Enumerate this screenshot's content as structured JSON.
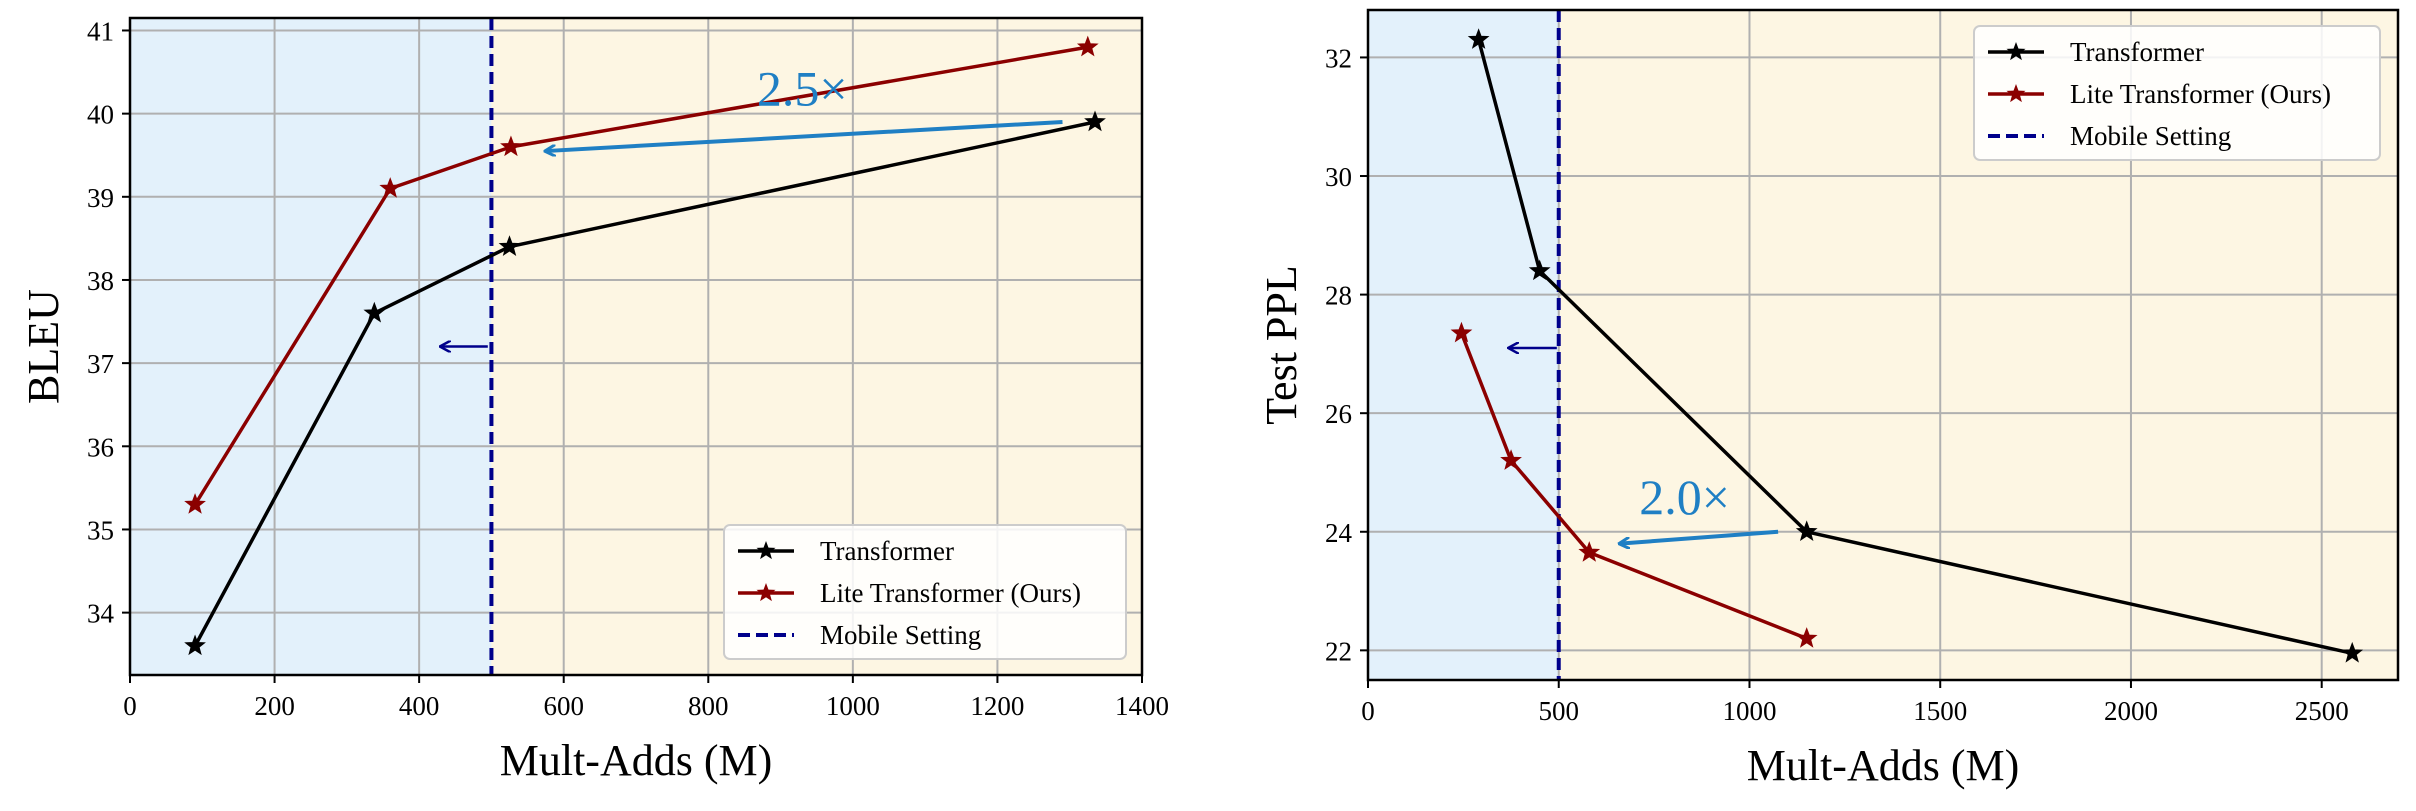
{
  "chart_data": [
    {
      "type": "line",
      "title": "",
      "xlabel": "Mult-Adds (M)",
      "ylabel": "BLEU",
      "xlim": [
        0,
        1400
      ],
      "ylim": [
        33.25,
        41.15
      ],
      "xticks": [
        0,
        200,
        400,
        600,
        800,
        1000,
        1200,
        1400
      ],
      "xtick_labels": [
        "0",
        "200",
        "400",
        "600",
        "800",
        "1000",
        "1200",
        "1400"
      ],
      "yticks": [
        34,
        35,
        36,
        37,
        38,
        39,
        40,
        41
      ],
      "ytick_labels": [
        "34",
        "35",
        "36",
        "37",
        "38",
        "39",
        "40",
        "41"
      ],
      "grid": true,
      "legend_position": "bottom-right",
      "series": [
        {
          "name": "Transformer",
          "color": "#000000",
          "marker": "star",
          "x": [
            90,
            338,
            525,
            1335
          ],
          "y": [
            33.6,
            37.6,
            38.4,
            39.9
          ]
        },
        {
          "name": "Lite Transformer (Ours)",
          "color": "#8b0000",
          "marker": "star",
          "x": [
            90,
            360,
            527,
            1325
          ],
          "y": [
            35.3,
            39.1,
            39.6,
            40.8
          ]
        }
      ],
      "mobile_setting": {
        "name": "Mobile Setting",
        "x": 500,
        "color": "#00008b"
      },
      "regions": {
        "left_color": "#e3f1fb",
        "right_color": "#fdf6e3"
      },
      "annotations": [
        {
          "text": "2.5×",
          "x": 930,
          "y": 40.1,
          "color": "#1f7fc4"
        }
      ],
      "speedup_arrow": {
        "from": [
          1290,
          39.9
        ],
        "to": [
          575,
          39.55
        ],
        "color": "#1f7fc4"
      },
      "direction_arrow": {
        "from": [
          495,
          37.2
        ],
        "to": [
          430,
          37.2
        ],
        "color": "#00008b"
      }
    },
    {
      "type": "line",
      "title": "",
      "xlabel": "Mult-Adds (M)",
      "ylabel": "Test PPL",
      "xlim": [
        0,
        2700
      ],
      "ylim": [
        21.5,
        32.8
      ],
      "xticks": [
        0,
        500,
        1000,
        1500,
        2000,
        2500
      ],
      "xtick_labels": [
        "0",
        "500",
        "1000",
        "1500",
        "2000",
        "2500"
      ],
      "yticks": [
        22,
        24,
        26,
        28,
        30,
        32
      ],
      "ytick_labels": [
        "22",
        "24",
        "26",
        "28",
        "30",
        "32"
      ],
      "grid": true,
      "legend_position": "top-right",
      "series": [
        {
          "name": "Transformer",
          "color": "#000000",
          "marker": "star",
          "x": [
            290,
            450,
            1150,
            2580
          ],
          "y": [
            32.3,
            28.4,
            24.0,
            21.95
          ]
        },
        {
          "name": "Lite Transformer (Ours)",
          "color": "#8b0000",
          "marker": "star",
          "x": [
            245,
            375,
            580,
            1150
          ],
          "y": [
            27.35,
            25.2,
            23.65,
            22.2
          ]
        }
      ],
      "mobile_setting": {
        "name": "Mobile Setting",
        "x": 500,
        "color": "#00008b"
      },
      "regions": {
        "left_color": "#e3f1fb",
        "right_color": "#fdf6e3"
      },
      "annotations": [
        {
          "text": "2.0×",
          "x": 830,
          "y": 24.3,
          "color": "#1f7fc4"
        }
      ],
      "speedup_arrow": {
        "from": [
          1075,
          24.0
        ],
        "to": [
          660,
          23.8
        ],
        "color": "#1f7fc4"
      },
      "direction_arrow": {
        "from": [
          495,
          27.1
        ],
        "to": [
          370,
          27.1
        ],
        "color": "#00008b"
      }
    }
  ]
}
